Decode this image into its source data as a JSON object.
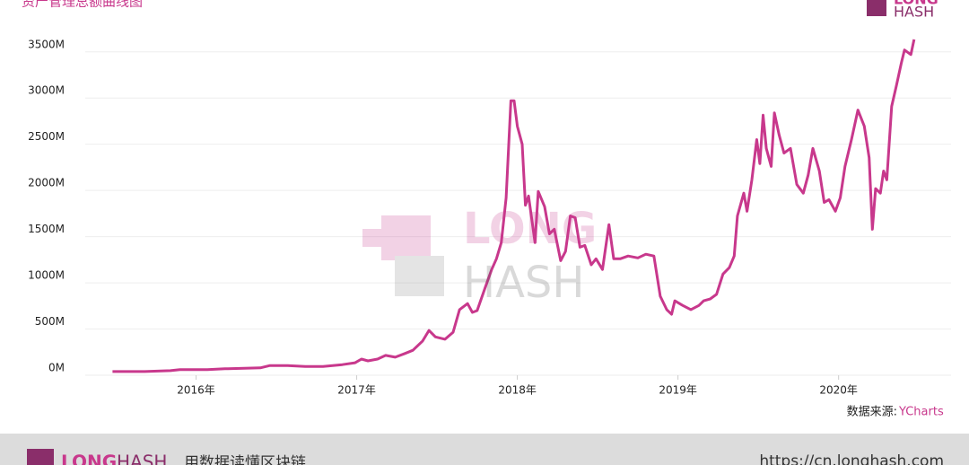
{
  "chart_data": {
    "type": "line",
    "title": "资产管理总额曲线图",
    "source_label": "数据来源:",
    "source_name": "YCharts",
    "logo": [
      "LONG",
      "HASH"
    ],
    "watermark": [
      "LONG",
      "HASH"
    ],
    "x": [
      2015.48,
      2015.68,
      2015.84,
      2015.9,
      2016.07,
      2016.18,
      2016.4,
      2016.46,
      2016.57,
      2016.68,
      2016.79,
      2016.91,
      2016.99,
      2017.03,
      2017.07,
      2017.13,
      2017.18,
      2017.24,
      2017.3,
      2017.35,
      2017.41,
      2017.45,
      2017.49,
      2017.55,
      2017.6,
      2017.64,
      2017.69,
      2017.72,
      2017.75,
      2017.8,
      2017.84,
      2017.87,
      2017.9,
      2017.93,
      2017.96,
      2017.98,
      2018.0,
      2018.03,
      2018.05,
      2018.07,
      2018.11,
      2018.13,
      2018.17,
      2018.2,
      2018.23,
      2018.27,
      2018.3,
      2018.33,
      2018.36,
      2018.39,
      2018.42,
      2018.46,
      2018.49,
      2018.53,
      2018.57,
      2018.6,
      2018.64,
      2018.69,
      2018.75,
      2018.8,
      2018.85,
      2018.89,
      2018.93,
      2018.96,
      2018.98,
      2019.03,
      2019.08,
      2019.13,
      2019.16,
      2019.2,
      2019.24,
      2019.28,
      2019.32,
      2019.35,
      2019.37,
      2019.41,
      2019.43,
      2019.46,
      2019.49,
      2019.51,
      2019.53,
      2019.55,
      2019.58,
      2019.6,
      2019.63,
      2019.66,
      2019.7,
      2019.74,
      2019.78,
      2019.81,
      2019.84,
      2019.88,
      2019.91,
      2019.94,
      2019.98,
      2020.01,
      2020.04,
      2020.08,
      2020.12,
      2020.16,
      2020.19,
      2020.21,
      2020.23,
      2020.26,
      2020.28,
      2020.3,
      2020.33,
      2020.36,
      2020.39,
      2020.41,
      2020.45,
      2020.47
    ],
    "series": [
      {
        "name": "资产管理总额",
        "color": "#c8388c",
        "values": [
          40,
          40,
          50,
          60,
          60,
          70,
          80,
          105,
          105,
          95,
          95,
          115,
          135,
          175,
          155,
          175,
          215,
          195,
          235,
          270,
          370,
          485,
          415,
          390,
          465,
          710,
          775,
          680,
          700,
          950,
          1145,
          1260,
          1435,
          1920,
          2970,
          2970,
          2695,
          2500,
          1840,
          1940,
          1435,
          1990,
          1825,
          1530,
          1580,
          1240,
          1340,
          1725,
          1705,
          1385,
          1405,
          1195,
          1260,
          1145,
          1630,
          1260,
          1260,
          1290,
          1270,
          1310,
          1290,
          855,
          710,
          660,
          805,
          755,
          710,
          755,
          805,
          825,
          875,
          1095,
          1165,
          1290,
          1725,
          1970,
          1775,
          2115,
          2550,
          2290,
          2815,
          2455,
          2260,
          2840,
          2600,
          2405,
          2455,
          2065,
          1970,
          2165,
          2455,
          2210,
          1870,
          1900,
          1775,
          1920,
          2260,
          2550,
          2870,
          2695,
          2355,
          1580,
          2020,
          1970,
          2210,
          2115,
          2910,
          3135,
          3375,
          3520,
          3470,
          3635
        ]
      }
    ],
    "xlim": [
      2015.31,
      2020.7
    ],
    "ylim": [
      0,
      3760
    ],
    "xticks": [
      {
        "value": 2016,
        "label": "2016年"
      },
      {
        "value": 2017,
        "label": "2017年"
      },
      {
        "value": 2018,
        "label": "2018年"
      },
      {
        "value": 2019,
        "label": "2019年"
      },
      {
        "value": 2020,
        "label": "2020年"
      }
    ],
    "yticks": [
      {
        "value": 0,
        "label": "0M"
      },
      {
        "value": 500,
        "label": "500M"
      },
      {
        "value": 1000,
        "label": "1000M"
      },
      {
        "value": 1500,
        "label": "1500M"
      },
      {
        "value": 2000,
        "label": "2000M"
      },
      {
        "value": 2500,
        "label": "2500M"
      },
      {
        "value": 3000,
        "label": "3000M"
      },
      {
        "value": 3500,
        "label": "3500M"
      }
    ],
    "grid": true
  },
  "footer": {
    "brand": [
      "LONG",
      "HASH"
    ],
    "slogan": "用数据读懂区块链",
    "url": "https://cn.longhash.com"
  }
}
